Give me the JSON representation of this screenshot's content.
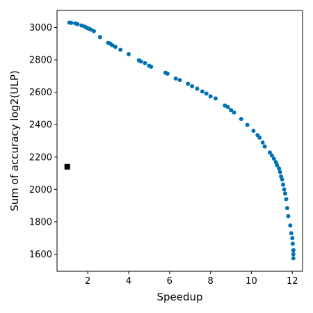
{
  "chart_data": {
    "type": "scatter",
    "xlabel": "Speedup",
    "ylabel": "Sum of accuracy log2(ULP)",
    "xlim": [
      0.5,
      12.5
    ],
    "ylim": [
      1495,
      3105
    ],
    "xticks": [
      2,
      4,
      6,
      8,
      10,
      12
    ],
    "yticks": [
      1600,
      1800,
      2000,
      2200,
      2400,
      2600,
      2800,
      3000
    ],
    "grid": false,
    "colors": {
      "points": "#0072b2",
      "baseline": "#000000"
    },
    "series": [
      {
        "marker": "circle",
        "points": [
          [
            1.1,
            3030
          ],
          [
            1.2,
            3028
          ],
          [
            1.4,
            3025
          ],
          [
            1.5,
            3020
          ],
          [
            1.7,
            3012
          ],
          [
            1.85,
            3005
          ],
          [
            1.95,
            2998
          ],
          [
            2.05,
            2993
          ],
          [
            2.15,
            2987
          ],
          [
            2.3,
            2977
          ],
          [
            2.6,
            2940
          ],
          [
            3.0,
            2905
          ],
          [
            3.1,
            2900
          ],
          [
            3.2,
            2890
          ],
          [
            3.35,
            2880
          ],
          [
            3.6,
            2862
          ],
          [
            4.0,
            2835
          ],
          [
            4.5,
            2797
          ],
          [
            4.6,
            2790
          ],
          [
            4.8,
            2780
          ],
          [
            5.0,
            2763
          ],
          [
            5.1,
            2758
          ],
          [
            5.8,
            2720
          ],
          [
            5.9,
            2715
          ],
          [
            6.3,
            2685
          ],
          [
            6.5,
            2675
          ],
          [
            6.9,
            2652
          ],
          [
            7.1,
            2637
          ],
          [
            7.35,
            2622
          ],
          [
            7.6,
            2605
          ],
          [
            7.8,
            2592
          ],
          [
            8.0,
            2575
          ],
          [
            8.25,
            2562
          ],
          [
            8.7,
            2518
          ],
          [
            8.85,
            2508
          ],
          [
            9.0,
            2490
          ],
          [
            9.15,
            2475
          ],
          [
            9.5,
            2435
          ],
          [
            9.8,
            2398
          ],
          [
            10.1,
            2362
          ],
          [
            10.3,
            2335
          ],
          [
            10.4,
            2320
          ],
          [
            10.55,
            2290
          ],
          [
            10.65,
            2265
          ],
          [
            10.9,
            2228
          ],
          [
            11.0,
            2210
          ],
          [
            11.1,
            2190
          ],
          [
            11.2,
            2168
          ],
          [
            11.25,
            2150
          ],
          [
            11.35,
            2130
          ],
          [
            11.4,
            2108
          ],
          [
            11.45,
            2080
          ],
          [
            11.5,
            2062
          ],
          [
            11.55,
            2030
          ],
          [
            11.6,
            2000
          ],
          [
            11.65,
            1975
          ],
          [
            11.7,
            1940
          ],
          [
            11.75,
            1885
          ],
          [
            11.8,
            1835
          ],
          [
            11.9,
            1778
          ],
          [
            11.95,
            1730
          ],
          [
            12.0,
            1700
          ],
          [
            12.02,
            1665
          ],
          [
            12.05,
            1625
          ],
          [
            12.05,
            1600
          ],
          [
            12.05,
            1575
          ]
        ]
      },
      {
        "marker": "square",
        "points": [
          [
            1.0,
            2140
          ]
        ]
      }
    ]
  }
}
